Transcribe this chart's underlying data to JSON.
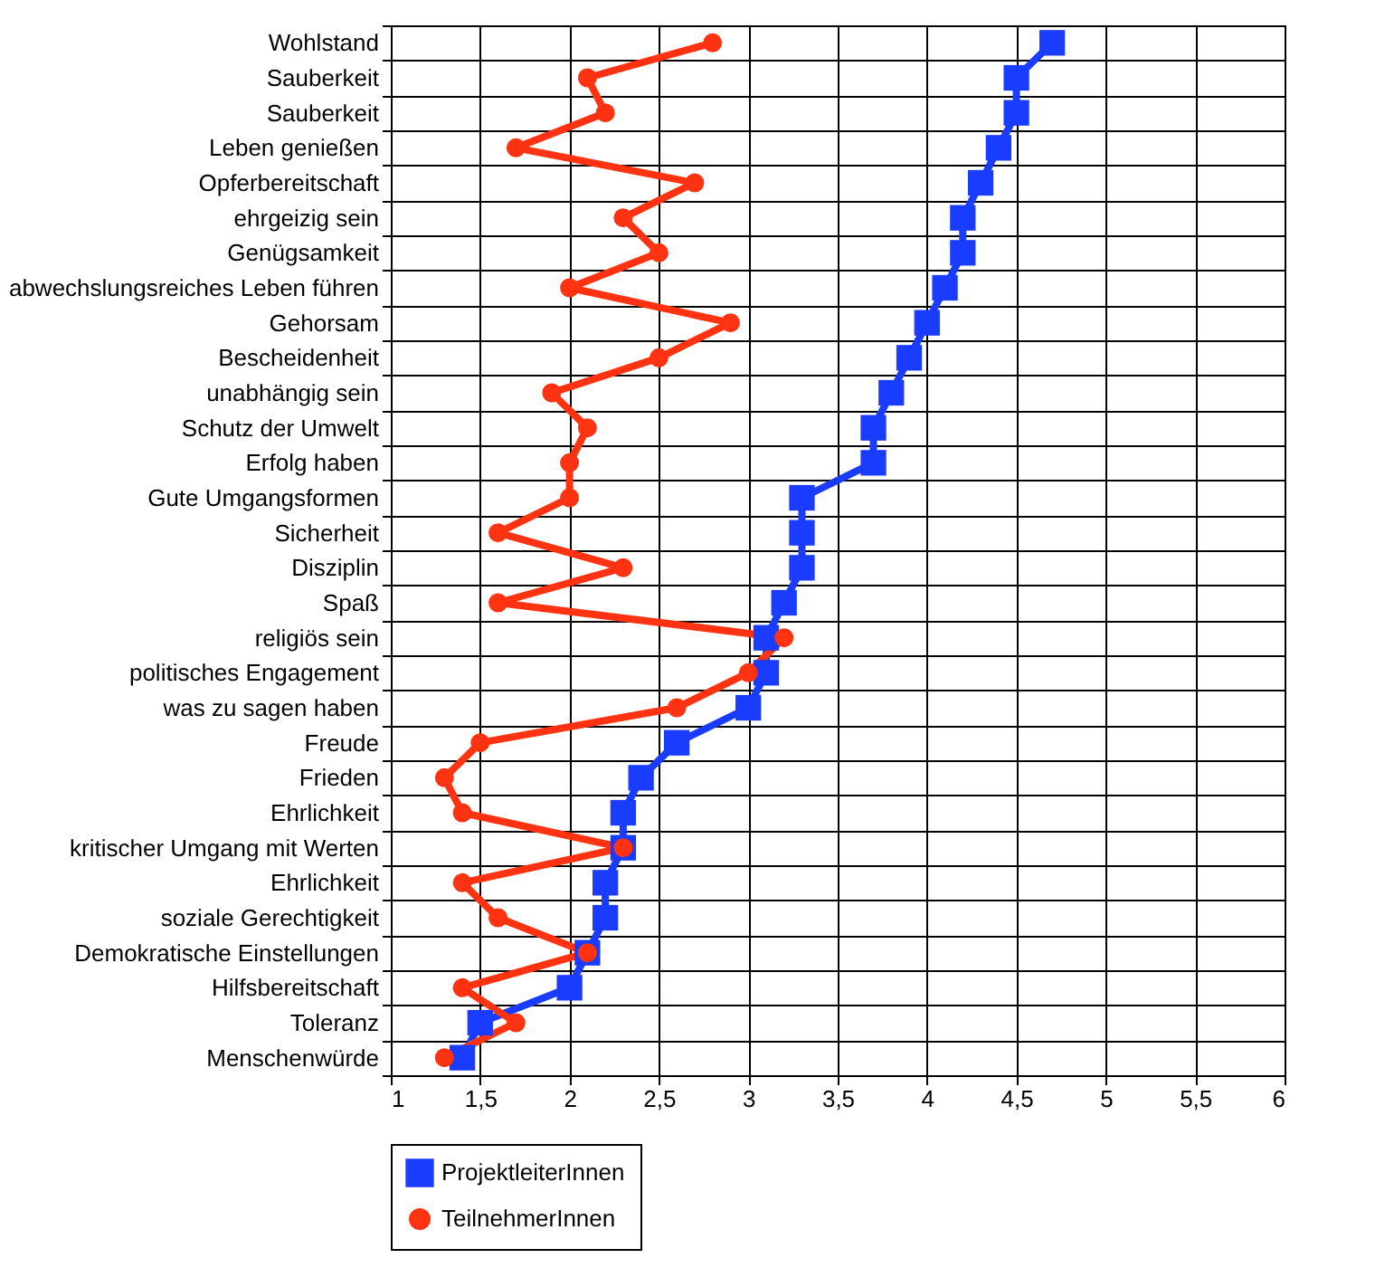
{
  "chart_data": {
    "type": "line",
    "orientation": "horizontal",
    "categories": [
      "Wohlstand",
      "Sauberkeit",
      "Sauberkeit",
      "Leben genießen",
      "Opferbereitschaft",
      "ehrgeizig sein",
      "Genügsamkeit",
      "abwechslungsreiches Leben führen",
      "Gehorsam",
      "Bescheidenheit",
      "unabhängig sein",
      "Schutz der Umwelt",
      "Erfolg haben",
      "Gute Umgangsformen",
      "Sicherheit",
      "Disziplin",
      "Spaß",
      "religiös sein",
      "politisches Engagement",
      "was zu sagen haben",
      "Freude",
      "Frieden",
      "Ehrlichkeit",
      "kritischer Umgang mit Werten",
      "Ehrlichkeit",
      "soziale Gerechtigkeit",
      "Demokratische Einstellungen",
      "Hilfsbereitschaft",
      "Toleranz",
      "Menschenwürde"
    ],
    "series": [
      {
        "name": "ProjektleiterInnen",
        "color": "#1a3cff",
        "marker": "square",
        "values": [
          4.7,
          4.5,
          4.5,
          4.4,
          4.3,
          4.2,
          4.2,
          4.1,
          4.0,
          3.9,
          3.8,
          3.7,
          3.7,
          3.3,
          3.3,
          3.3,
          3.2,
          3.1,
          3.1,
          3.0,
          2.6,
          2.4,
          2.3,
          2.3,
          2.2,
          2.2,
          2.1,
          2.0,
          1.5,
          1.4
        ]
      },
      {
        "name": "TeilnehmerInnen",
        "color": "#ff3311",
        "marker": "circle",
        "values": [
          2.8,
          2.1,
          2.2,
          1.7,
          2.7,
          2.3,
          2.5,
          2.0,
          2.9,
          2.5,
          1.9,
          2.1,
          2.0,
          2.0,
          1.6,
          2.3,
          1.6,
          3.2,
          3.0,
          2.6,
          1.5,
          1.3,
          1.4,
          2.3,
          1.4,
          1.6,
          2.1,
          1.4,
          1.7,
          1.3
        ]
      }
    ],
    "xlim": [
      1,
      6
    ],
    "xticks": [
      1,
      {
        "value": 1.5,
        "label": "1,5"
      },
      2,
      {
        "value": 2.5,
        "label": "2,5"
      },
      3,
      {
        "value": 3.5,
        "label": "3,5"
      },
      4,
      {
        "value": 4.5,
        "label": "4,5"
      },
      5,
      {
        "value": 5.5,
        "label": "5,5"
      },
      6
    ],
    "grid": true,
    "legend": "bottom",
    "line_style": "solid"
  }
}
